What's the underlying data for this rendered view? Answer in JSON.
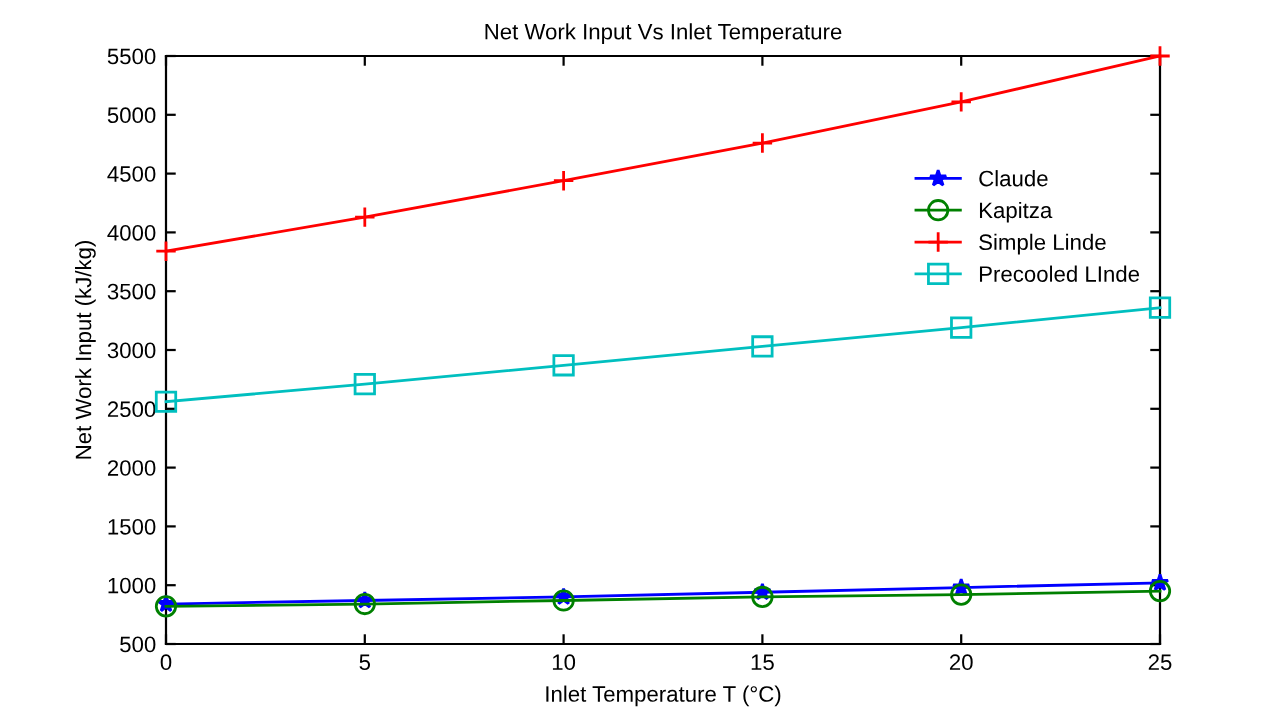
{
  "chart_data": {
    "type": "line",
    "title": "Net Work Input Vs Inlet Temperature",
    "xlabel": "Inlet Temperature T (°C)",
    "ylabel": "Net Work Input (kJ/kg)",
    "x": [
      0,
      5,
      10,
      15,
      20,
      25
    ],
    "series": [
      {
        "name": "Claude",
        "color": "#0000ff",
        "marker": "star",
        "values": [
          840,
          870,
          900,
          940,
          980,
          1020
        ]
      },
      {
        "name": "Kapitza",
        "color": "#008000",
        "marker": "circle",
        "values": [
          820,
          840,
          870,
          900,
          920,
          950
        ]
      },
      {
        "name": "Simple Linde",
        "color": "#ff0000",
        "marker": "cross",
        "values": [
          3840,
          4130,
          4440,
          4760,
          5110,
          5500
        ]
      },
      {
        "name": "Precooled LInde",
        "color": "#00bfbf",
        "marker": "square",
        "values": [
          2560,
          2710,
          2870,
          3030,
          3190,
          3360
        ]
      }
    ],
    "xlim": [
      0,
      25
    ],
    "xticks": [
      0,
      5,
      10,
      15,
      20,
      25
    ],
    "ylim": [
      500,
      5500
    ],
    "yticks": [
      500,
      1000,
      1500,
      2000,
      2500,
      3000,
      3500,
      4000,
      4500,
      5000,
      5500
    ],
    "grid": false,
    "legend": "upper right",
    "line_style": "solid"
  }
}
